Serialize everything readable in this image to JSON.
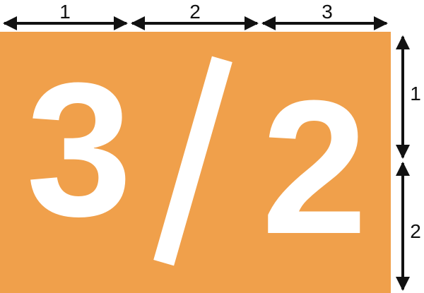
{
  "colors": {
    "panel": "#F0A04B",
    "glyph": "#FFFFFF",
    "arrow": "#111111",
    "background": "#FFFFFF"
  },
  "ratio": {
    "numerator": "3",
    "separator": "/",
    "denominator": "2"
  },
  "top_dimensions": [
    {
      "label": "1"
    },
    {
      "label": "2"
    },
    {
      "label": "3"
    }
  ],
  "side_dimensions": [
    {
      "label": "1"
    },
    {
      "label": "2"
    }
  ]
}
